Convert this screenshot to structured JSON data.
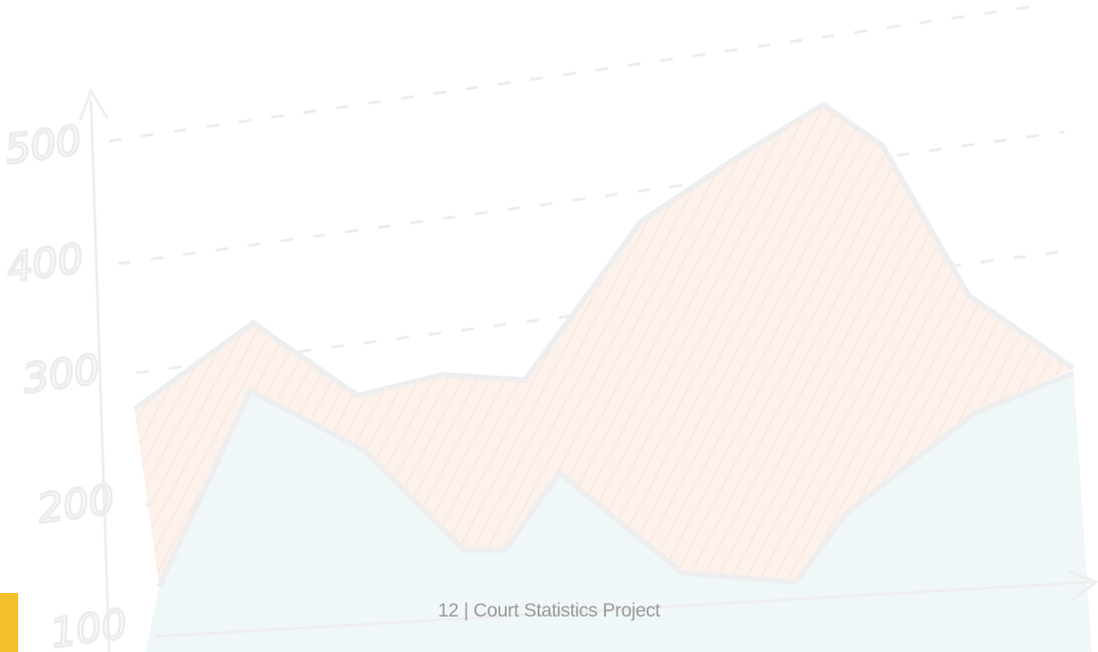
{
  "background_chart": {
    "axis_labels": [
      "500",
      "400",
      "300",
      "200",
      "100"
    ]
  },
  "footer": {
    "text": "12 | Court Statistics Project"
  }
}
